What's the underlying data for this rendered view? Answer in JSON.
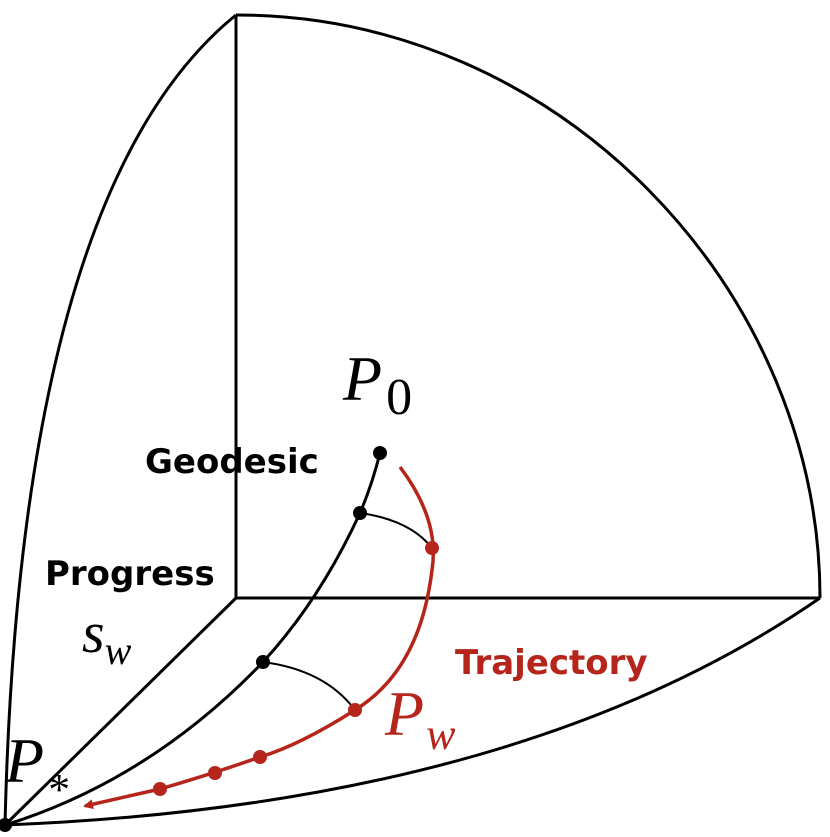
{
  "labels": {
    "p0": {
      "main": "P",
      "sub": "0"
    },
    "geodesic": "Geodesic",
    "progress": "Progress",
    "sw": {
      "main": "s",
      "sub": "w"
    },
    "trajectory": "Trajectory",
    "pw": {
      "main": "P",
      "sub": "w"
    },
    "pstar": {
      "main": "P",
      "sub": "*"
    }
  }
}
